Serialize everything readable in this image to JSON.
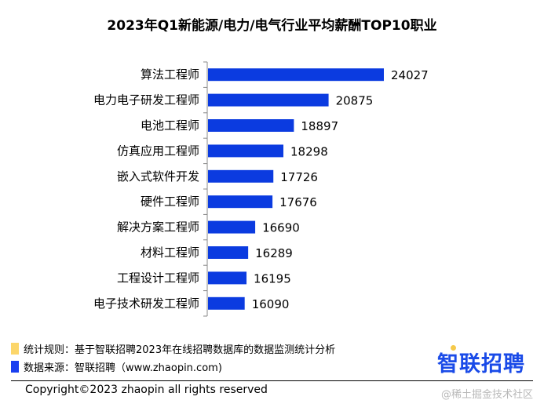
{
  "chart_data": {
    "type": "bar",
    "orientation": "horizontal",
    "title": "2023年Q1新能源/电力/电气行业平均薪酬TOP10职业",
    "categories": [
      "算法工程师",
      "电力电子研发工程师",
      "电池工程师",
      "仿真应用工程师",
      "嵌入式软件开发",
      "硬件工程师",
      "解决方案工程师",
      "材料工程师",
      "工程设计工程师",
      "电子技术研发工程师"
    ],
    "values": [
      24027,
      20875,
      18897,
      18298,
      17726,
      17676,
      16690,
      16289,
      16195,
      16090
    ],
    "xlim": [
      14000,
      24100
    ],
    "bar_color": "#0b3be0",
    "grid": false,
    "data_labels": true
  },
  "legend": [
    {
      "label": "统计规则：基于智联招聘2023年在线招聘数据库的数据监测统计分析",
      "color": "#fcd66a"
    },
    {
      "label": "数据来源：智联招聘（www.zhaopin.com)",
      "color": "#1a3ff0"
    }
  ],
  "logo": "智联招聘",
  "copyright": "Copyright©2023 zhaopin all rights reserved",
  "watermark": "@稀土掘金技术社区"
}
